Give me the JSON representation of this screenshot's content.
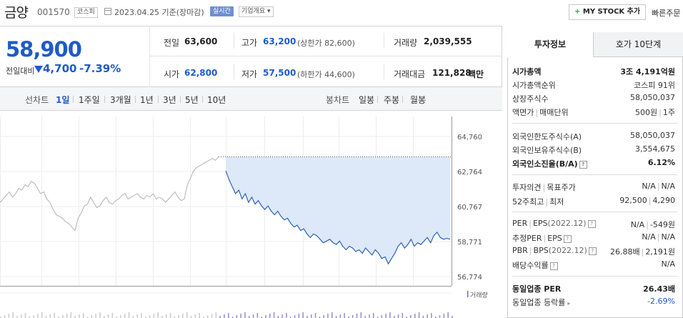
{
  "header": {
    "name": "금양",
    "code": "001570",
    "market": "코스피",
    "date": "2023.04.25",
    "date_suffix": "기준(장마감)",
    "realtime": "실시간",
    "company_info": "기업개요",
    "mystock_plus": "+",
    "mystock": "MY STOCK 추가",
    "quick_order": "빠른주문"
  },
  "price": {
    "current": "58,900",
    "change_label": "전일대비",
    "change": "4,700",
    "change_pct": "-7.39%"
  },
  "summary": {
    "prev_label": "전일",
    "prev": "63,600",
    "high_label": "고가",
    "high": "63,200",
    "upper_limit": "(상한가 82,600)",
    "volume_label": "거래량",
    "volume": "2,039,555",
    "open_label": "시가",
    "open": "62,800",
    "low_label": "저가",
    "low": "57,500",
    "lower_limit": "(하한가 44,600)",
    "amount_label": "거래대금",
    "amount": "121,828",
    "amount_unit": "백만"
  },
  "period_tabs": {
    "line_chart": "선차트",
    "items": [
      "1일",
      "1주일",
      "3개월",
      "1년",
      "3년",
      "5년",
      "10년"
    ],
    "selected": "1일",
    "candle_chart": "봉차트",
    "candle_items": [
      "일봉",
      "주봉",
      "월봉"
    ]
  },
  "chart_data": {
    "type": "line",
    "y_ticks": [
      "64,760",
      "62,764",
      "60,767",
      "58,771",
      "56,774"
    ],
    "ylim": [
      56774,
      64760
    ],
    "prev_close": 63600,
    "volume_label": "거래량",
    "grid": true,
    "previous_day": [
      61000,
      61200,
      61400,
      61600,
      61300,
      61500,
      61800,
      61700,
      62000,
      61900,
      62200,
      62100,
      61800,
      61500,
      61600,
      61200,
      61000,
      60600,
      60300,
      60200,
      60100,
      59900,
      59800,
      59600,
      59400,
      60100,
      60400,
      60800,
      60900,
      61300,
      61000,
      60700,
      60800,
      61100,
      61300,
      61000,
      60900,
      61100,
      61200,
      61400,
      61500,
      61200,
      61300,
      61400,
      61500,
      61300,
      61200,
      61400,
      61300,
      61500,
      61200,
      61300,
      61200,
      61000,
      61200,
      61400,
      61600,
      61300,
      61100,
      61200,
      62000,
      62400,
      62800,
      63000,
      63100,
      63200,
      63300,
      63400,
      63500,
      63400,
      63600
    ],
    "today": [
      62800,
      62300,
      61900,
      61500,
      61700,
      61200,
      61500,
      61000,
      61300,
      60900,
      61100,
      60800,
      60600,
      60800,
      60500,
      60300,
      60500,
      60200,
      60000,
      60100,
      59800,
      59600,
      59700,
      59400,
      59500,
      59200,
      59000,
      59200,
      59100,
      58900,
      58700,
      58800,
      58900,
      58700,
      58600,
      58800,
      58500,
      58300,
      58500,
      58400,
      58200,
      58300,
      58100,
      58400,
      58200,
      58000,
      58300,
      58100,
      57800,
      57900,
      57500,
      57800,
      58100,
      58500,
      58700,
      58400,
      58600,
      58900,
      58500,
      58700,
      58600,
      58800,
      59000,
      58700,
      59100,
      59300,
      59000,
      58900,
      58950,
      58900
    ]
  },
  "right_panel": {
    "tabs": [
      "투자정보",
      "호가 10단계"
    ],
    "market_cap_label": "시가총액",
    "market_cap": "3조 4,191억원",
    "rank_label": "시가총액순위",
    "rank": "코스피 91위",
    "shares_label": "상장주식수",
    "shares": "58,050,037",
    "par_label": "액면가",
    "unit_label": "매매단위",
    "par": "500원",
    "unit": "1주",
    "foreign_limit_label": "외국인한도주식수(A)",
    "foreign_limit": "58,050,037",
    "foreign_hold_label": "외국인보유주식수(B)",
    "foreign_hold": "3,554,675",
    "foreign_ratio_label": "외국인소진율(B/A)",
    "foreign_ratio": "6.12%",
    "opinion_label": "투자의견",
    "target_label": "목표주가",
    "opinion": "N/A",
    "target": "N/A",
    "w52_label": "52주최고",
    "w52_low_label": "최저",
    "w52_high": "92,500",
    "w52_low": "4,290",
    "per_label": "PER",
    "eps_label": "EPS",
    "eps_period": "(2022.12)",
    "per": "N/A",
    "eps": "-549원",
    "est_per_label": "추정PER",
    "est_eps_label": "EPS",
    "est_per": "N/A",
    "est_eps": "N/A",
    "pbr_label": "PBR",
    "bps_label": "BPS",
    "bps_period": "(2022.12)",
    "pbr": "26.88배",
    "bps": "2,191원",
    "div_label": "배당수익률",
    "div": "N/A",
    "ind_per_label": "동일업종 PER",
    "ind_per": "26.43배",
    "ind_rate_label": "동일업종 등락률",
    "ind_rate": "-2.69%",
    "qm": "?"
  }
}
